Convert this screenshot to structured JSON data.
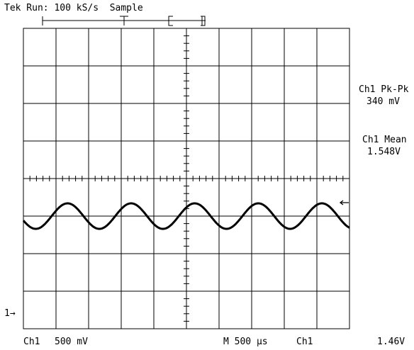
{
  "header": {
    "status": "Tek Run: 100 kS/s  Sample"
  },
  "measurements": {
    "pkpk_label": "Ch1 Pk-Pk",
    "pkpk_value": "340 mV",
    "mean_label": "Ch1 Mean",
    "mean_value": "1.548V"
  },
  "footer": {
    "channel": "Ch1",
    "volts_per_div": "500 mV",
    "timebase": "M 500 µs",
    "trigger_source": "Ch1",
    "trigger_level": "1.46V"
  },
  "ground_marker": "1→",
  "chart_data": {
    "type": "line",
    "title": "",
    "xlabel": "",
    "ylabel": "",
    "grid": true,
    "divisions": {
      "x": 10,
      "y": 8
    },
    "series": [
      {
        "name": "Ch1",
        "waveform": "sine",
        "period_div": 1.95,
        "amplitude_div": 0.34,
        "offset_div": 3.1,
        "phase_deg": 200
      }
    ]
  },
  "colors": {
    "trace": "#000000",
    "grid": "#000000",
    "background": "#ffffff"
  }
}
